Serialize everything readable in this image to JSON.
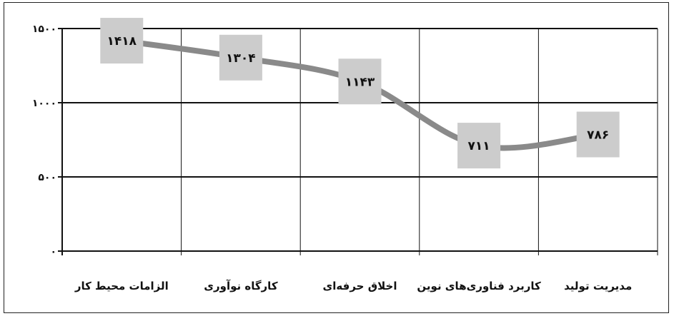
{
  "chart_data": {
    "type": "line",
    "categories": [
      "الزامات محیط کار",
      "کارگاه نوآوری",
      "اخلاق حرفه‌ای",
      "کاربرد فناوری‌های نوین",
      "مدیریت تولید"
    ],
    "series": [
      {
        "values": [
          1418,
          1304,
          1143,
          711,
          786
        ],
        "labels": [
          "۱۴۱۸",
          "۱۳۰۴",
          "۱۱۴۳",
          "۷۱۱",
          "۷۸۶"
        ]
      }
    ],
    "yticks": [
      {
        "value": 0,
        "label": "۰"
      },
      {
        "value": 500,
        "label": "۵۰۰"
      },
      {
        "value": 1000,
        "label": "۱۰۰۰"
      },
      {
        "value": 1500,
        "label": "۱۵۰۰"
      }
    ],
    "ylim": [
      0,
      1500
    ],
    "grid": true,
    "legend": "none",
    "colors": {
      "line": "#8a8a8a",
      "label_box": "#cccccc",
      "grid": "#111111"
    }
  }
}
